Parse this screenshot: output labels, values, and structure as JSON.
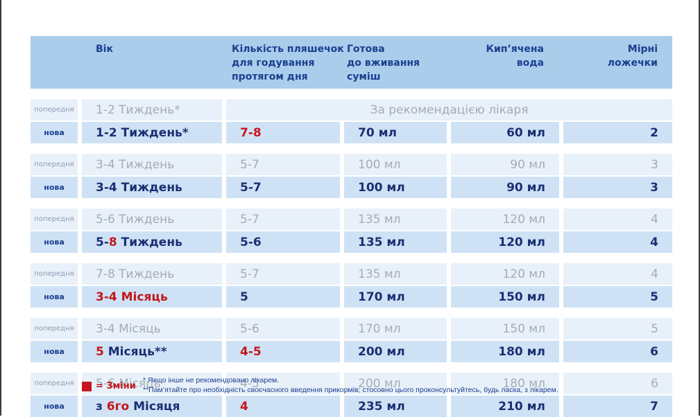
{
  "header": {
    "age": "Вік",
    "count": "Кількість пляшечок\nдля годування\nпротягом дня",
    "ready": "Готова\nдо вживання\nсуміш",
    "water": "Кип’ячена\nвода",
    "spoons": "Мірні\nложечки"
  },
  "tags": {
    "prev": "попередня",
    "new": "нова"
  },
  "groups": [
    {
      "prev": {
        "age": "1-2 Тиждень*",
        "merged": "За рекомендацією лікаря"
      },
      "new": {
        "age": "1-2 Тиждень*",
        "count": "7-8",
        "ready": "70 мл",
        "water": "60 мл",
        "spoons": "2"
      }
    },
    {
      "prev": {
        "age": "3-4 Тиждень",
        "count": "5-7",
        "ready": "100 мл",
        "water": "90 мл",
        "spoons": "3"
      },
      "new": {
        "age": "3-4 Тиждень",
        "count": "5-7",
        "ready": "100 мл",
        "water": "90 мл",
        "spoons": "3"
      }
    },
    {
      "prev": {
        "age": "5-6 Тиждень",
        "count": "5-7",
        "ready": "135 мл",
        "water": "120 мл",
        "spoons": "4"
      },
      "new": {
        "age_a": "5-",
        "age_b": "8",
        "age_c": " Тиждень",
        "count": "5-6",
        "ready": "135 мл",
        "water": "120 мл",
        "spoons": "4"
      }
    },
    {
      "prev": {
        "age": "7-8 Тиждень",
        "count": "5-7",
        "ready": "135 мл",
        "water": "120 мл",
        "spoons": "4"
      },
      "new": {
        "age": "3-4 Місяць",
        "count": "5",
        "ready": "170 мл",
        "water": "150 мл",
        "spoons": "5"
      }
    },
    {
      "prev": {
        "age": "3-4 Місяць",
        "count": "5-6",
        "ready": "170 мл",
        "water": "150 мл",
        "spoons": "5"
      },
      "new": {
        "age_a": "5",
        "age_b": " Місяць**",
        "count": "4-5",
        "ready": "200 мл",
        "water": "180 мл",
        "spoons": "6"
      }
    },
    {
      "prev": {
        "age": "5-6 Місяць",
        "count": "4-5",
        "ready": "200 мл",
        "water": "180 мл",
        "spoons": "6"
      },
      "new": {
        "age_a": "з ",
        "age_b": "6",
        "age_sup": "го",
        "age_c": " Місяця",
        "count": "4",
        "ready": "235 мл",
        "water": "210 мл",
        "spoons": "7"
      }
    }
  ],
  "legend": {
    "label": "= Зміни",
    "color": "#c4161c"
  },
  "footnotes": {
    "note1": "* Якщо інше не рекомендовано лікарем.",
    "note2": "**Пам’ятайте про необхідність своєчасного введення прикормів; стосовно цього проконсультуйтесь, будь ласка, з лікарем."
  }
}
